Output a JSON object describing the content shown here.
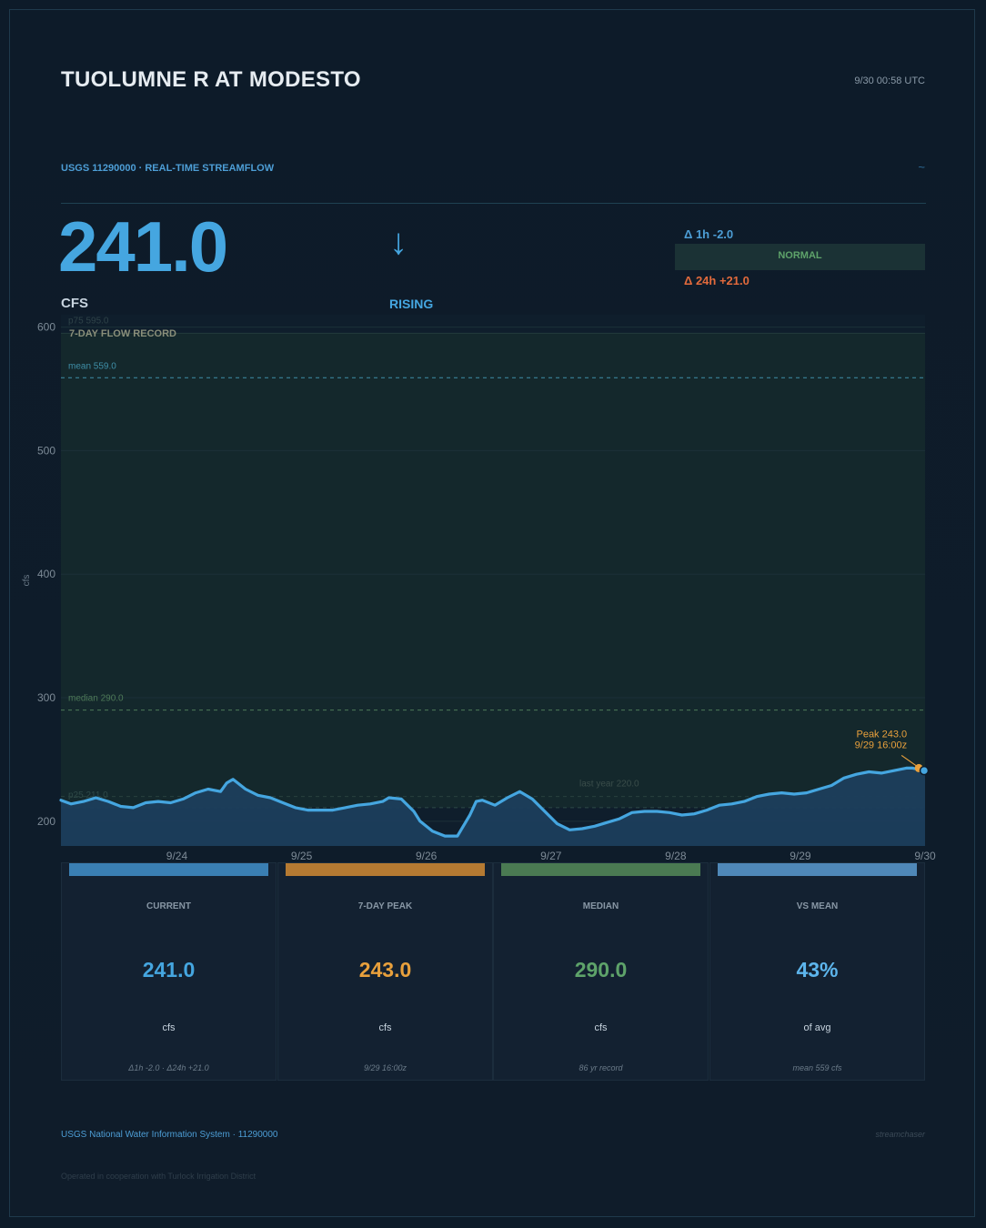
{
  "header": {
    "title": "TUOLUMNE R AT MODESTO",
    "timestamp": "9/30  00:58 UTC",
    "subtitle": "USGS 11290000  ·  REAL-TIME STREAMFLOW",
    "wave_glyph": "~"
  },
  "summary": {
    "current_value": "241.0",
    "unit": "CFS",
    "arrow_glyph": "↓",
    "trend": "RISING",
    "delta_1h": "Δ 1h  -2.0",
    "status": "NORMAL",
    "delta_24h": "Δ 24h  +21.0"
  },
  "chart_data": {
    "type": "area",
    "title": "7-DAY FLOW RECORD",
    "ylabel": "cfs",
    "ylim": [
      180,
      610
    ],
    "yticks": [
      200,
      300,
      400,
      500,
      600
    ],
    "x_range": [
      -6.93,
      0.0
    ],
    "x_unit": "days relative to 9/30 00:00",
    "xtick_values": [
      -6,
      -5,
      -4,
      -3,
      -2,
      -1,
      0
    ],
    "xtick_labels": [
      "9/24",
      "9/25",
      "9/26",
      "9/27",
      "9/28",
      "9/29",
      "9/30"
    ],
    "reference_lines": [
      {
        "label": "p75  595.0",
        "value": 595
      },
      {
        "label": "mean  559.0",
        "value": 559
      },
      {
        "label": "median  290.0",
        "value": 290
      },
      {
        "label": "p25  211.0",
        "value": 211
      },
      {
        "label": "last year  220.0",
        "value": 220
      }
    ],
    "normal_band": [
      211,
      595
    ],
    "peak": {
      "label": "Peak  243.0",
      "sublabel": "9/29  16:00z",
      "x": -0.05,
      "y": 243
    },
    "current": {
      "x": 0.0,
      "y": 241
    },
    "series": [
      {
        "name": "flow",
        "x": [
          -6.93,
          -6.85,
          -6.75,
          -6.65,
          -6.55,
          -6.45,
          -6.35,
          -6.25,
          -6.15,
          -6.05,
          -5.95,
          -5.85,
          -5.75,
          -5.65,
          -5.6,
          -5.55,
          -5.45,
          -5.35,
          -5.25,
          -5.15,
          -5.05,
          -4.95,
          -4.85,
          -4.75,
          -4.65,
          -4.55,
          -4.45,
          -4.35,
          -4.3,
          -4.2,
          -4.1,
          -4.05,
          -3.95,
          -3.85,
          -3.75,
          -3.65,
          -3.6,
          -3.55,
          -3.45,
          -3.35,
          -3.25,
          -3.15,
          -3.05,
          -2.95,
          -2.85,
          -2.75,
          -2.65,
          -2.55,
          -2.45,
          -2.35,
          -2.25,
          -2.15,
          -2.05,
          -1.95,
          -1.85,
          -1.75,
          -1.65,
          -1.55,
          -1.45,
          -1.35,
          -1.25,
          -1.15,
          -1.05,
          -0.95,
          -0.85,
          -0.75,
          -0.65,
          -0.55,
          -0.45,
          -0.35,
          -0.25,
          -0.15,
          -0.1,
          -0.05,
          0.0
        ],
        "y": [
          217,
          214,
          216,
          219,
          216,
          212,
          211,
          215,
          216,
          215,
          218,
          223,
          226,
          224,
          231,
          234,
          226,
          221,
          219,
          215,
          211,
          209,
          209,
          209,
          211,
          213,
          214,
          216,
          219,
          218,
          208,
          200,
          192,
          188,
          188,
          205,
          216,
          217,
          213,
          219,
          224,
          218,
          208,
          198,
          193,
          194,
          196,
          199,
          202,
          207,
          208,
          208,
          207,
          205,
          206,
          209,
          213,
          214,
          216,
          220,
          222,
          223,
          222,
          223,
          226,
          229,
          235,
          238,
          240,
          239,
          241,
          243,
          243,
          242,
          241
        ]
      }
    ]
  },
  "cards": [
    {
      "label": "CURRENT",
      "value": "241.0",
      "unit": "cfs",
      "note": "Δ1h -2.0  ·  Δ24h +21.0",
      "color": "#45a6e0",
      "bar_color": "#3a7fb3"
    },
    {
      "label": "7-DAY PEAK",
      "value": "243.0",
      "unit": "cfs",
      "note": "9/29 16:00z",
      "color": "#e8a03c",
      "bar_color": "#b57a32"
    },
    {
      "label": "MEDIAN",
      "value": "290.0",
      "unit": "cfs",
      "note": "86 yr record",
      "color": "#5ea36a",
      "bar_color": "#4a7a52"
    },
    {
      "label": "VS MEAN",
      "value": "43%",
      "unit": "of avg",
      "note": "mean 559 cfs",
      "color": "#5db5ec",
      "bar_color": "#4f88b8"
    }
  ],
  "footer": {
    "source": "USGS National Water Information System  ·  11290000",
    "brand": "streamchaser",
    "cooperation": "Operated in cooperation with Turlock Irrigation District"
  },
  "colors": {
    "flow_line": "#45a6e0",
    "flow_fill": "#1c3e5c",
    "normal_band": "#14282c",
    "peak": "#e8a03c",
    "median_line": "#4e7a58",
    "mean_line": "#3f8fa8"
  }
}
